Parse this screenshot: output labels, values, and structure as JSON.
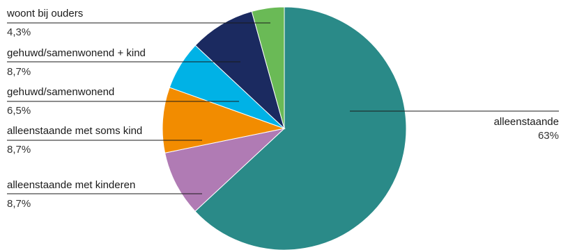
{
  "chart_data": {
    "type": "pie",
    "title": "",
    "unit": "%",
    "slices": [
      {
        "name": "alleenstaande",
        "value": 63,
        "value_label": "63%",
        "color": "#2a8a88"
      },
      {
        "name": "alleenstaande met kinderen",
        "value": 8.7,
        "value_label": "8,7%",
        "color": "#b07bb4"
      },
      {
        "name": "alleenstaande met soms kind",
        "value": 8.7,
        "value_label": "8,7%",
        "color": "#f28c00"
      },
      {
        "name": "gehuwd/samenwonend",
        "value": 6.5,
        "value_label": "6,5%",
        "color": "#00b2e6"
      },
      {
        "name": "gehuwd/samenwonend + kind",
        "value": 8.7,
        "value_label": "8,7%",
        "color": "#1b2a60"
      },
      {
        "name": "woont bij ouders",
        "value": 4.3,
        "value_label": "4,3%",
        "color": "#6aba56"
      }
    ],
    "start_angle": "12 o'clock",
    "direction": "clockwise",
    "legend": "none",
    "labels": "outside with leader lines"
  }
}
